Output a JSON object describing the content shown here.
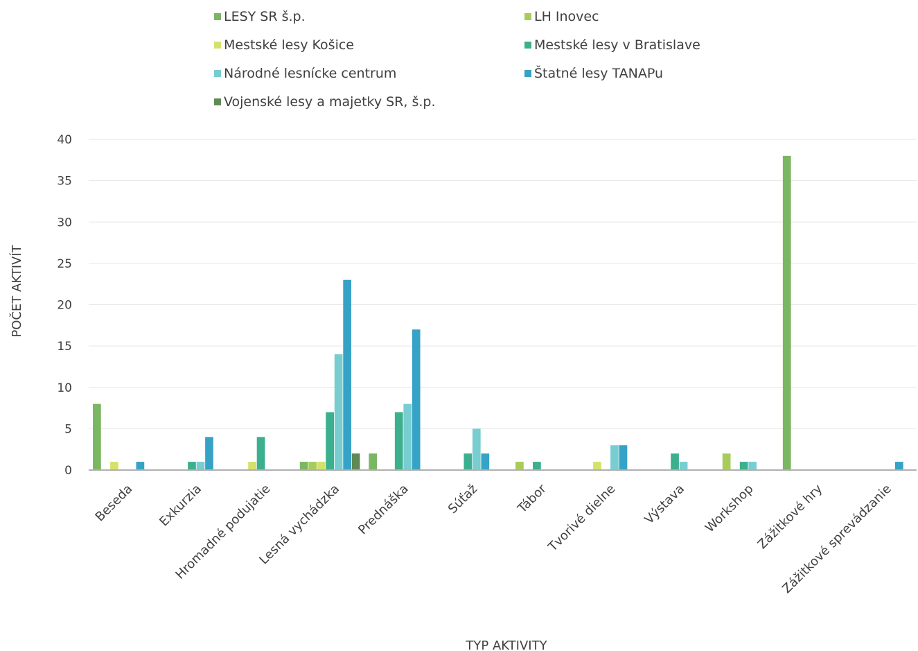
{
  "chart_data": {
    "type": "bar",
    "xlabel": "TYP AKTIVITY",
    "ylabel": "POČET AKTIVÍT",
    "ylim": [
      0,
      40
    ],
    "yticks": [
      0,
      5,
      10,
      15,
      20,
      25,
      30,
      35,
      40
    ],
    "grid": true,
    "legend_position": "top",
    "categories": [
      "Beseda",
      "Exkurzia",
      "Hromadné podujatie",
      "Lesná vychádzka",
      "Prednáška",
      "Súťaž",
      "Tábor",
      "Tvorivé dielne",
      "Výstava",
      "Workshop",
      "Zážitkové hry",
      "Zážitkové sprevádzanie"
    ],
    "series": [
      {
        "name": "LESY SR š.p.",
        "color": "#7bb662",
        "values": [
          8,
          0,
          0,
          1,
          2,
          0,
          0,
          0,
          0,
          0,
          38,
          0
        ]
      },
      {
        "name": "LH Inovec",
        "color": "#a8cc5a",
        "values": [
          0,
          0,
          0,
          1,
          0,
          0,
          1,
          0,
          0,
          2,
          0,
          0
        ]
      },
      {
        "name": "Mestské lesy Košice",
        "color": "#d4e26a",
        "values": [
          1,
          0,
          1,
          1,
          0,
          0,
          0,
          1,
          0,
          0,
          0,
          0
        ]
      },
      {
        "name": "Mestské lesy v Bratislave",
        "color": "#3cb08e",
        "values": [
          0,
          1,
          4,
          7,
          7,
          2,
          1,
          0,
          2,
          1,
          0,
          0
        ]
      },
      {
        "name": "Národné lesnícke centrum",
        "color": "#78cdd0",
        "values": [
          0,
          1,
          0,
          14,
          8,
          5,
          0,
          3,
          1,
          1,
          0,
          0
        ]
      },
      {
        "name": "Štatné lesy TANAPu",
        "color": "#36a2c6",
        "values": [
          1,
          4,
          0,
          23,
          17,
          2,
          0,
          3,
          0,
          0,
          0,
          1
        ]
      },
      {
        "name": "Vojenské lesy a majetky SR, š.p.",
        "color": "#5f8a55",
        "values": [
          0,
          0,
          0,
          2,
          0,
          0,
          0,
          0,
          0,
          0,
          0,
          0
        ]
      }
    ]
  }
}
